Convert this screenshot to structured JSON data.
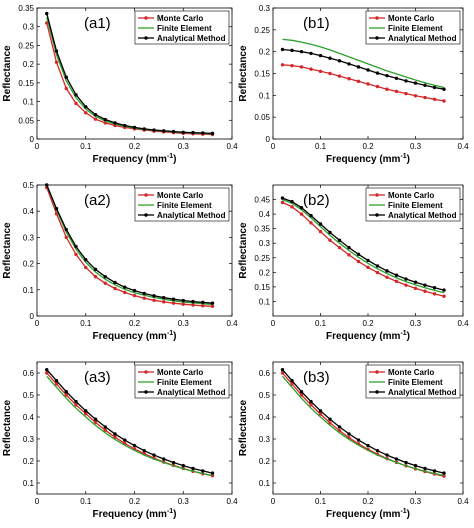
{
  "figure": {
    "colors": {
      "monte_carlo": "#d62728",
      "finite_element": "#2ca02c",
      "analytical": "#000000"
    },
    "x_tick_labels": [
      "0",
      "0.1",
      "0.2",
      "0.3",
      "0.4"
    ]
  },
  "chart_data": [
    {
      "panel": "(a1)",
      "type": "line",
      "xlabel": "Frequency (mm",
      "xlabel_sup": "-1",
      "xlabel_end": ")",
      "ylabel": "Reflectance",
      "xlim": [
        0,
        0.4
      ],
      "ylim": [
        0,
        0.35
      ],
      "yticks": [
        0,
        0.05,
        0.1,
        0.15,
        0.2,
        0.25,
        0.3,
        0.35
      ],
      "y_tick_labels": [
        "0",
        "0.05",
        "0.1",
        "0.15",
        "0.2",
        "0.25",
        "0.3",
        "0.35"
      ],
      "legend": "top-right",
      "grid": false,
      "x": [
        0.02,
        0.04,
        0.06,
        0.08,
        0.1,
        0.12,
        0.14,
        0.16,
        0.18,
        0.2,
        0.22,
        0.24,
        0.26,
        0.28,
        0.3,
        0.32,
        0.34,
        0.36
      ],
      "series": [
        {
          "name": "Monte Carlo",
          "values": [
            0.31,
            0.205,
            0.135,
            0.095,
            0.07,
            0.053,
            0.043,
            0.036,
            0.031,
            0.027,
            0.024,
            0.021,
            0.019,
            0.017,
            0.015,
            0.014,
            0.013,
            0.012
          ]
        },
        {
          "name": "Finite Element",
          "values": [
            0.325,
            0.225,
            0.155,
            0.11,
            0.08,
            0.06,
            0.048,
            0.04,
            0.034,
            0.029,
            0.026,
            0.023,
            0.021,
            0.019,
            0.017,
            0.016,
            0.015,
            0.014
          ]
        },
        {
          "name": "Analytical Method",
          "values": [
            0.335,
            0.235,
            0.165,
            0.118,
            0.086,
            0.065,
            0.052,
            0.043,
            0.036,
            0.031,
            0.027,
            0.024,
            0.022,
            0.02,
            0.018,
            0.017,
            0.016,
            0.015
          ]
        }
      ]
    },
    {
      "panel": "(b1)",
      "type": "line",
      "xlabel": "Frequency (mm",
      "xlabel_sup": "-1",
      "xlabel_end": ")",
      "ylabel": "Reflectance",
      "xlim": [
        0,
        0.4
      ],
      "ylim": [
        0,
        0.3
      ],
      "yticks": [
        0,
        0.05,
        0.1,
        0.15,
        0.2,
        0.25,
        0.3
      ],
      "y_tick_labels": [
        "0",
        "0.05",
        "0.1",
        "0.15",
        "0.2",
        "0.25",
        "0.3"
      ],
      "legend": "top-right",
      "grid": false,
      "x": [
        0.02,
        0.04,
        0.06,
        0.08,
        0.1,
        0.12,
        0.14,
        0.16,
        0.18,
        0.2,
        0.22,
        0.24,
        0.26,
        0.28,
        0.3,
        0.32,
        0.34,
        0.36
      ],
      "series": [
        {
          "name": "Monte Carlo",
          "values": [
            0.17,
            0.168,
            0.165,
            0.16,
            0.155,
            0.15,
            0.144,
            0.138,
            0.132,
            0.126,
            0.12,
            0.114,
            0.109,
            0.104,
            0.099,
            0.095,
            0.091,
            0.087
          ]
        },
        {
          "name": "Finite Element",
          "values": [
            0.228,
            0.226,
            0.222,
            0.217,
            0.211,
            0.204,
            0.196,
            0.188,
            0.18,
            0.172,
            0.164,
            0.156,
            0.149,
            0.142,
            0.135,
            0.129,
            0.123,
            0.118
          ]
        },
        {
          "name": "Analytical Method",
          "values": [
            0.205,
            0.203,
            0.2,
            0.196,
            0.191,
            0.185,
            0.179,
            0.172,
            0.165,
            0.158,
            0.151,
            0.145,
            0.139,
            0.133,
            0.128,
            0.123,
            0.118,
            0.114
          ]
        }
      ]
    },
    {
      "panel": "(a2)",
      "type": "line",
      "xlabel": "Frequency (mm",
      "xlabel_sup": "-1",
      "xlabel_end": ")",
      "ylabel": "Reflectance",
      "xlim": [
        0,
        0.4
      ],
      "ylim": [
        0,
        0.5
      ],
      "yticks": [
        0,
        0.1,
        0.2,
        0.3,
        0.4,
        0.5
      ],
      "y_tick_labels": [
        "0",
        "0.1",
        "0.2",
        "0.3",
        "0.4",
        "0.5"
      ],
      "legend": "top-right",
      "grid": false,
      "x": [
        0.02,
        0.04,
        0.06,
        0.08,
        0.1,
        0.12,
        0.14,
        0.16,
        0.18,
        0.2,
        0.22,
        0.24,
        0.26,
        0.28,
        0.3,
        0.32,
        0.34,
        0.36
      ],
      "series": [
        {
          "name": "Monte Carlo",
          "values": [
            0.49,
            0.39,
            0.3,
            0.235,
            0.185,
            0.15,
            0.125,
            0.105,
            0.09,
            0.078,
            0.068,
            0.06,
            0.054,
            0.049,
            0.045,
            0.042,
            0.039,
            0.037
          ]
        },
        {
          "name": "Finite Element",
          "values": [
            0.5,
            0.405,
            0.32,
            0.255,
            0.205,
            0.168,
            0.14,
            0.119,
            0.102,
            0.089,
            0.079,
            0.071,
            0.064,
            0.058,
            0.053,
            0.05,
            0.047,
            0.044
          ]
        },
        {
          "name": "Analytical Method",
          "values": [
            0.5,
            0.41,
            0.33,
            0.265,
            0.215,
            0.178,
            0.15,
            0.128,
            0.11,
            0.097,
            0.086,
            0.077,
            0.07,
            0.064,
            0.059,
            0.055,
            0.052,
            0.049
          ]
        }
      ]
    },
    {
      "panel": "(b2)",
      "type": "line",
      "xlabel": "Frequency (mm",
      "xlabel_sup": "-1",
      "xlabel_end": ")",
      "ylabel": "Reflectance",
      "xlim": [
        0,
        0.4
      ],
      "ylim": [
        0.05,
        0.5
      ],
      "yticks": [
        0.1,
        0.15,
        0.2,
        0.25,
        0.3,
        0.35,
        0.4,
        0.45
      ],
      "y_tick_labels": [
        "0.1",
        "0.15",
        "0.2",
        "0.25",
        "0.3",
        "0.35",
        "0.4",
        "0.45"
      ],
      "legend": "top-right",
      "grid": false,
      "x": [
        0.02,
        0.04,
        0.06,
        0.08,
        0.1,
        0.12,
        0.14,
        0.16,
        0.18,
        0.2,
        0.22,
        0.24,
        0.26,
        0.28,
        0.3,
        0.32,
        0.34,
        0.36
      ],
      "series": [
        {
          "name": "Monte Carlo",
          "values": [
            0.44,
            0.425,
            0.4,
            0.37,
            0.34,
            0.31,
            0.285,
            0.26,
            0.237,
            0.217,
            0.199,
            0.183,
            0.169,
            0.156,
            0.145,
            0.135,
            0.126,
            0.118
          ]
        },
        {
          "name": "Finite Element",
          "values": [
            0.45,
            0.437,
            0.415,
            0.387,
            0.357,
            0.327,
            0.3,
            0.275,
            0.252,
            0.231,
            0.212,
            0.196,
            0.181,
            0.168,
            0.157,
            0.147,
            0.138,
            0.13
          ]
        },
        {
          "name": "Analytical Method",
          "values": [
            0.455,
            0.443,
            0.422,
            0.395,
            0.366,
            0.337,
            0.31,
            0.285,
            0.262,
            0.241,
            0.222,
            0.205,
            0.19,
            0.177,
            0.166,
            0.156,
            0.147,
            0.139
          ]
        }
      ]
    },
    {
      "panel": "(a3)",
      "type": "line",
      "xlabel": "Frequency (mm",
      "xlabel_sup": "-1",
      "xlabel_end": ")",
      "ylabel": "Reflectance",
      "xlim": [
        0,
        0.4
      ],
      "ylim": [
        0.05,
        0.65
      ],
      "yticks": [
        0.1,
        0.2,
        0.3,
        0.4,
        0.5,
        0.6
      ],
      "y_tick_labels": [
        "0.1",
        "0.2",
        "0.3",
        "0.4",
        "0.5",
        "0.6"
      ],
      "legend": "top-right",
      "grid": false,
      "x": [
        0.02,
        0.04,
        0.06,
        0.08,
        0.1,
        0.12,
        0.14,
        0.16,
        0.18,
        0.2,
        0.22,
        0.24,
        0.26,
        0.28,
        0.3,
        0.32,
        0.34,
        0.36
      ],
      "series": [
        {
          "name": "Monte Carlo",
          "values": [
            0.6,
            0.55,
            0.5,
            0.455,
            0.415,
            0.375,
            0.34,
            0.308,
            0.28,
            0.255,
            0.233,
            0.213,
            0.195,
            0.18,
            0.166,
            0.153,
            0.142,
            0.133
          ]
        },
        {
          "name": "Finite Element",
          "values": [
            0.585,
            0.535,
            0.485,
            0.44,
            0.4,
            0.362,
            0.328,
            0.298,
            0.272,
            0.248,
            0.227,
            0.209,
            0.193,
            0.178,
            0.165,
            0.153,
            0.143,
            0.134
          ]
        },
        {
          "name": "Analytical Method",
          "values": [
            0.615,
            0.565,
            0.515,
            0.47,
            0.428,
            0.39,
            0.355,
            0.323,
            0.295,
            0.27,
            0.247,
            0.227,
            0.209,
            0.193,
            0.179,
            0.166,
            0.155,
            0.145
          ]
        }
      ]
    },
    {
      "panel": "(b3)",
      "type": "line",
      "xlabel": "Frequency (mm",
      "xlabel_sup": "-1",
      "xlabel_end": ")",
      "ylabel": "Reflectance",
      "xlim": [
        0,
        0.4
      ],
      "ylim": [
        0.05,
        0.65
      ],
      "yticks": [
        0.1,
        0.2,
        0.3,
        0.4,
        0.5,
        0.6
      ],
      "y_tick_labels": [
        "0.1",
        "0.2",
        "0.3",
        "0.4",
        "0.5",
        "0.6"
      ],
      "legend": "top-right",
      "grid": false,
      "x": [
        0.02,
        0.04,
        0.06,
        0.08,
        0.1,
        0.12,
        0.14,
        0.16,
        0.18,
        0.2,
        0.22,
        0.24,
        0.26,
        0.28,
        0.3,
        0.32,
        0.34,
        0.36
      ],
      "series": [
        {
          "name": "Monte Carlo",
          "values": [
            0.6,
            0.55,
            0.5,
            0.455,
            0.413,
            0.373,
            0.338,
            0.306,
            0.278,
            0.253,
            0.231,
            0.211,
            0.194,
            0.178,
            0.164,
            0.152,
            0.141,
            0.131
          ]
        },
        {
          "name": "Finite Element",
          "values": [
            0.585,
            0.535,
            0.485,
            0.44,
            0.4,
            0.362,
            0.328,
            0.298,
            0.272,
            0.248,
            0.227,
            0.209,
            0.193,
            0.178,
            0.165,
            0.153,
            0.143,
            0.134
          ]
        },
        {
          "name": "Analytical Method",
          "values": [
            0.615,
            0.565,
            0.515,
            0.47,
            0.428,
            0.39,
            0.355,
            0.323,
            0.295,
            0.27,
            0.247,
            0.227,
            0.209,
            0.193,
            0.179,
            0.166,
            0.155,
            0.145
          ]
        }
      ]
    }
  ]
}
